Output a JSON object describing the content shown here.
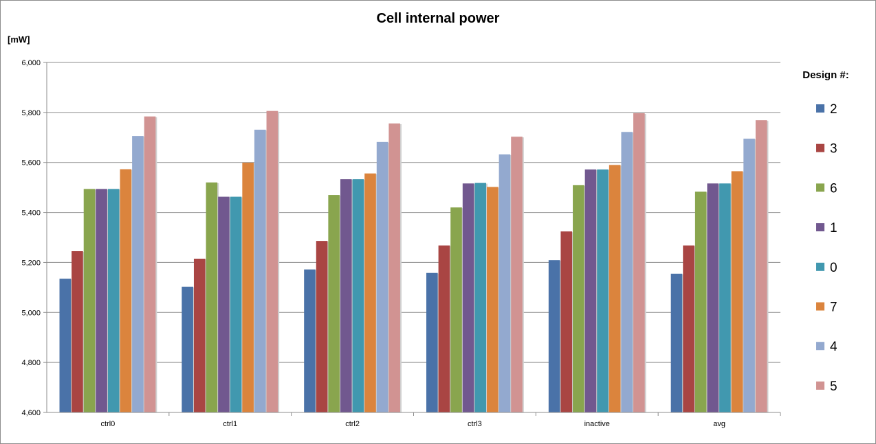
{
  "chart_data": {
    "type": "bar",
    "title": "Cell internal power",
    "ylabel": "[mW]",
    "xlabel": "",
    "ylim": [
      4600,
      6000
    ],
    "ytick_step": 200,
    "grid": true,
    "legend_title": "Design #:",
    "legend_position": "right",
    "categories": [
      "ctrl0",
      "ctrl1",
      "ctrl2",
      "ctrl3",
      "inactive",
      "avg"
    ],
    "series": [
      {
        "name": "2",
        "color": "#4a72a8",
        "values": [
          5135,
          5103,
          5172,
          5158,
          5209,
          5155
        ]
      },
      {
        "name": "3",
        "color": "#a94543",
        "values": [
          5245,
          5215,
          5286,
          5268,
          5324,
          5268
        ]
      },
      {
        "name": "6",
        "color": "#89a54e",
        "values": [
          5494,
          5520,
          5470,
          5420,
          5509,
          5483
        ]
      },
      {
        "name": "1",
        "color": "#71588f",
        "values": [
          5494,
          5463,
          5533,
          5516,
          5572,
          5516
        ]
      },
      {
        "name": "0",
        "color": "#4198af",
        "values": [
          5494,
          5463,
          5533,
          5518,
          5572,
          5516
        ]
      },
      {
        "name": "7",
        "color": "#db843d",
        "values": [
          5573,
          5599,
          5556,
          5502,
          5590,
          5565
        ]
      },
      {
        "name": "4",
        "color": "#93a9cf",
        "values": [
          5706,
          5731,
          5682,
          5632,
          5722,
          5695
        ]
      },
      {
        "name": "5",
        "color": "#d19392",
        "values": [
          5784,
          5806,
          5756,
          5703,
          5797,
          5769
        ]
      }
    ]
  }
}
